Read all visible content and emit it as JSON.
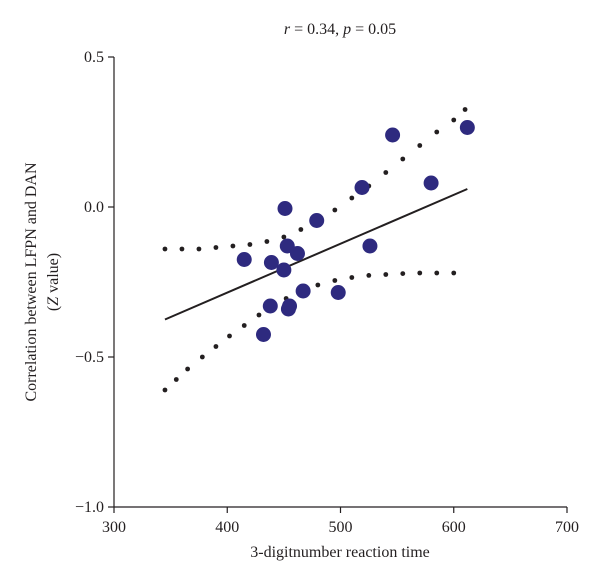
{
  "chart_data": {
    "type": "scatter",
    "title_parts": {
      "r_symbol": "r",
      "r_text": " = 0.34, ",
      "p_symbol": "p",
      "p_text": " = 0.05"
    },
    "xlabel": "3-digitnumber reaction time",
    "ylabel_line1": "Correlation between LFPN and DAN",
    "ylabel_line2_open": "(",
    "ylabel_line2_symbol": "Z",
    "ylabel_line2_rest": " value)",
    "xlim": [
      300,
      700
    ],
    "ylim": [
      -1.0,
      0.5
    ],
    "xticks": [
      300,
      400,
      500,
      600,
      700
    ],
    "xtick_labels": [
      "300",
      "400",
      "500",
      "600",
      "700"
    ],
    "yticks": [
      -1.0,
      -0.5,
      0.0,
      0.5
    ],
    "ytick_labels": [
      "−1.0",
      "−0.5",
      "0.0",
      "0.5"
    ],
    "grid": false,
    "series": [
      {
        "points_x": [
          415,
          432,
          438,
          439,
          450,
          451,
          453,
          454,
          455,
          462,
          467,
          479,
          498,
          519,
          526,
          546,
          580,
          612
        ],
        "points_y": [
          -0.175,
          -0.425,
          -0.33,
          -0.185,
          -0.21,
          -0.005,
          -0.13,
          -0.34,
          -0.33,
          -0.155,
          -0.28,
          -0.045,
          -0.285,
          0.065,
          -0.13,
          0.24,
          0.08,
          0.265
        ],
        "color": "#2e2a7f"
      }
    ],
    "fit_line": {
      "x": [
        345,
        612
      ],
      "y": [
        -0.375,
        0.06
      ],
      "color": "#231f20"
    },
    "ci_upper": {
      "x": [
        345,
        360,
        375,
        390,
        405,
        420,
        435,
        450,
        465,
        480,
        495,
        510,
        525,
        540,
        555,
        570,
        585,
        600,
        610
      ],
      "y": [
        -0.14,
        -0.14,
        -0.14,
        -0.135,
        -0.13,
        -0.125,
        -0.115,
        -0.1,
        -0.075,
        -0.045,
        -0.01,
        0.03,
        0.07,
        0.115,
        0.16,
        0.205,
        0.25,
        0.29,
        0.325
      ]
    },
    "ci_lower": {
      "x": [
        345,
        355,
        365,
        378,
        390,
        402,
        415,
        428,
        440,
        452,
        465,
        480,
        495,
        510,
        525,
        540,
        555,
        570,
        585,
        600
      ],
      "y": [
        -0.61,
        -0.575,
        -0.54,
        -0.5,
        -0.465,
        -0.43,
        -0.395,
        -0.36,
        -0.33,
        -0.305,
        -0.28,
        -0.26,
        -0.245,
        -0.235,
        -0.228,
        -0.225,
        -0.222,
        -0.22,
        -0.22,
        -0.22
      ]
    },
    "ci_color": "#231f20"
  }
}
